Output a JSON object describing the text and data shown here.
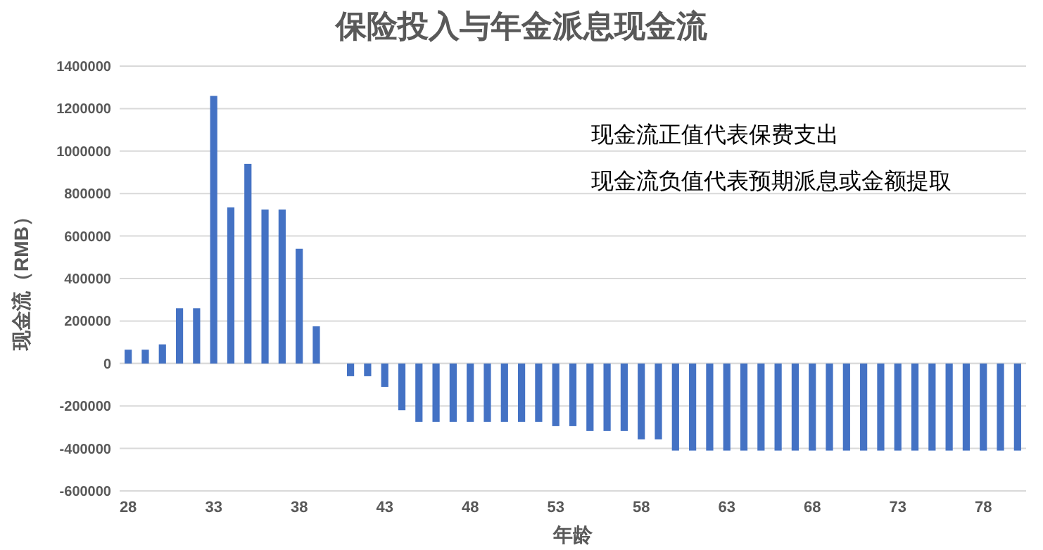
{
  "chart_data": {
    "type": "bar",
    "title": "保险投入与年金派息现金流",
    "xlabel": "年龄",
    "ylabel": "现金流（RMB）",
    "categories": [
      "28",
      null,
      null,
      null,
      null,
      "33",
      null,
      null,
      null,
      null,
      "38",
      null,
      null,
      null,
      null,
      "43",
      null,
      null,
      null,
      null,
      "48",
      null,
      null,
      null,
      null,
      "53",
      null,
      null,
      null,
      null,
      "58",
      null,
      null,
      null,
      null,
      "63",
      null,
      null,
      null,
      null,
      "68",
      null,
      null,
      null,
      null,
      "73",
      null,
      null,
      null,
      null,
      "78",
      null,
      null
    ],
    "values": [
      65000,
      65000,
      90000,
      260000,
      260000,
      1260000,
      735000,
      940000,
      725000,
      725000,
      540000,
      175000,
      null,
      -60000,
      -60000,
      -110000,
      -220000,
      -275000,
      -275000,
      -275000,
      -275000,
      -275000,
      -275000,
      -275000,
      -275000,
      -295000,
      -295000,
      -318000,
      -318000,
      -318000,
      -357000,
      -357000,
      -410000,
      -410000,
      -410000,
      -410000,
      -410000,
      -410000,
      -410000,
      -410000,
      -410000,
      -410000,
      -410000,
      -410000,
      -410000,
      -410000,
      -410000,
      -410000,
      -410000,
      -410000,
      -410000,
      -410000,
      -410000
    ],
    "color": "#4472c4",
    "ylim": [
      -600000,
      1400000
    ],
    "yticks": [
      -600000,
      -400000,
      -200000,
      0,
      200000,
      400000,
      600000,
      800000,
      1000000,
      1200000,
      1400000
    ],
    "grid": "y",
    "annotations": [
      "现金流正值代表保费支出",
      "现金流负值代表预期派息或金额提取"
    ]
  }
}
